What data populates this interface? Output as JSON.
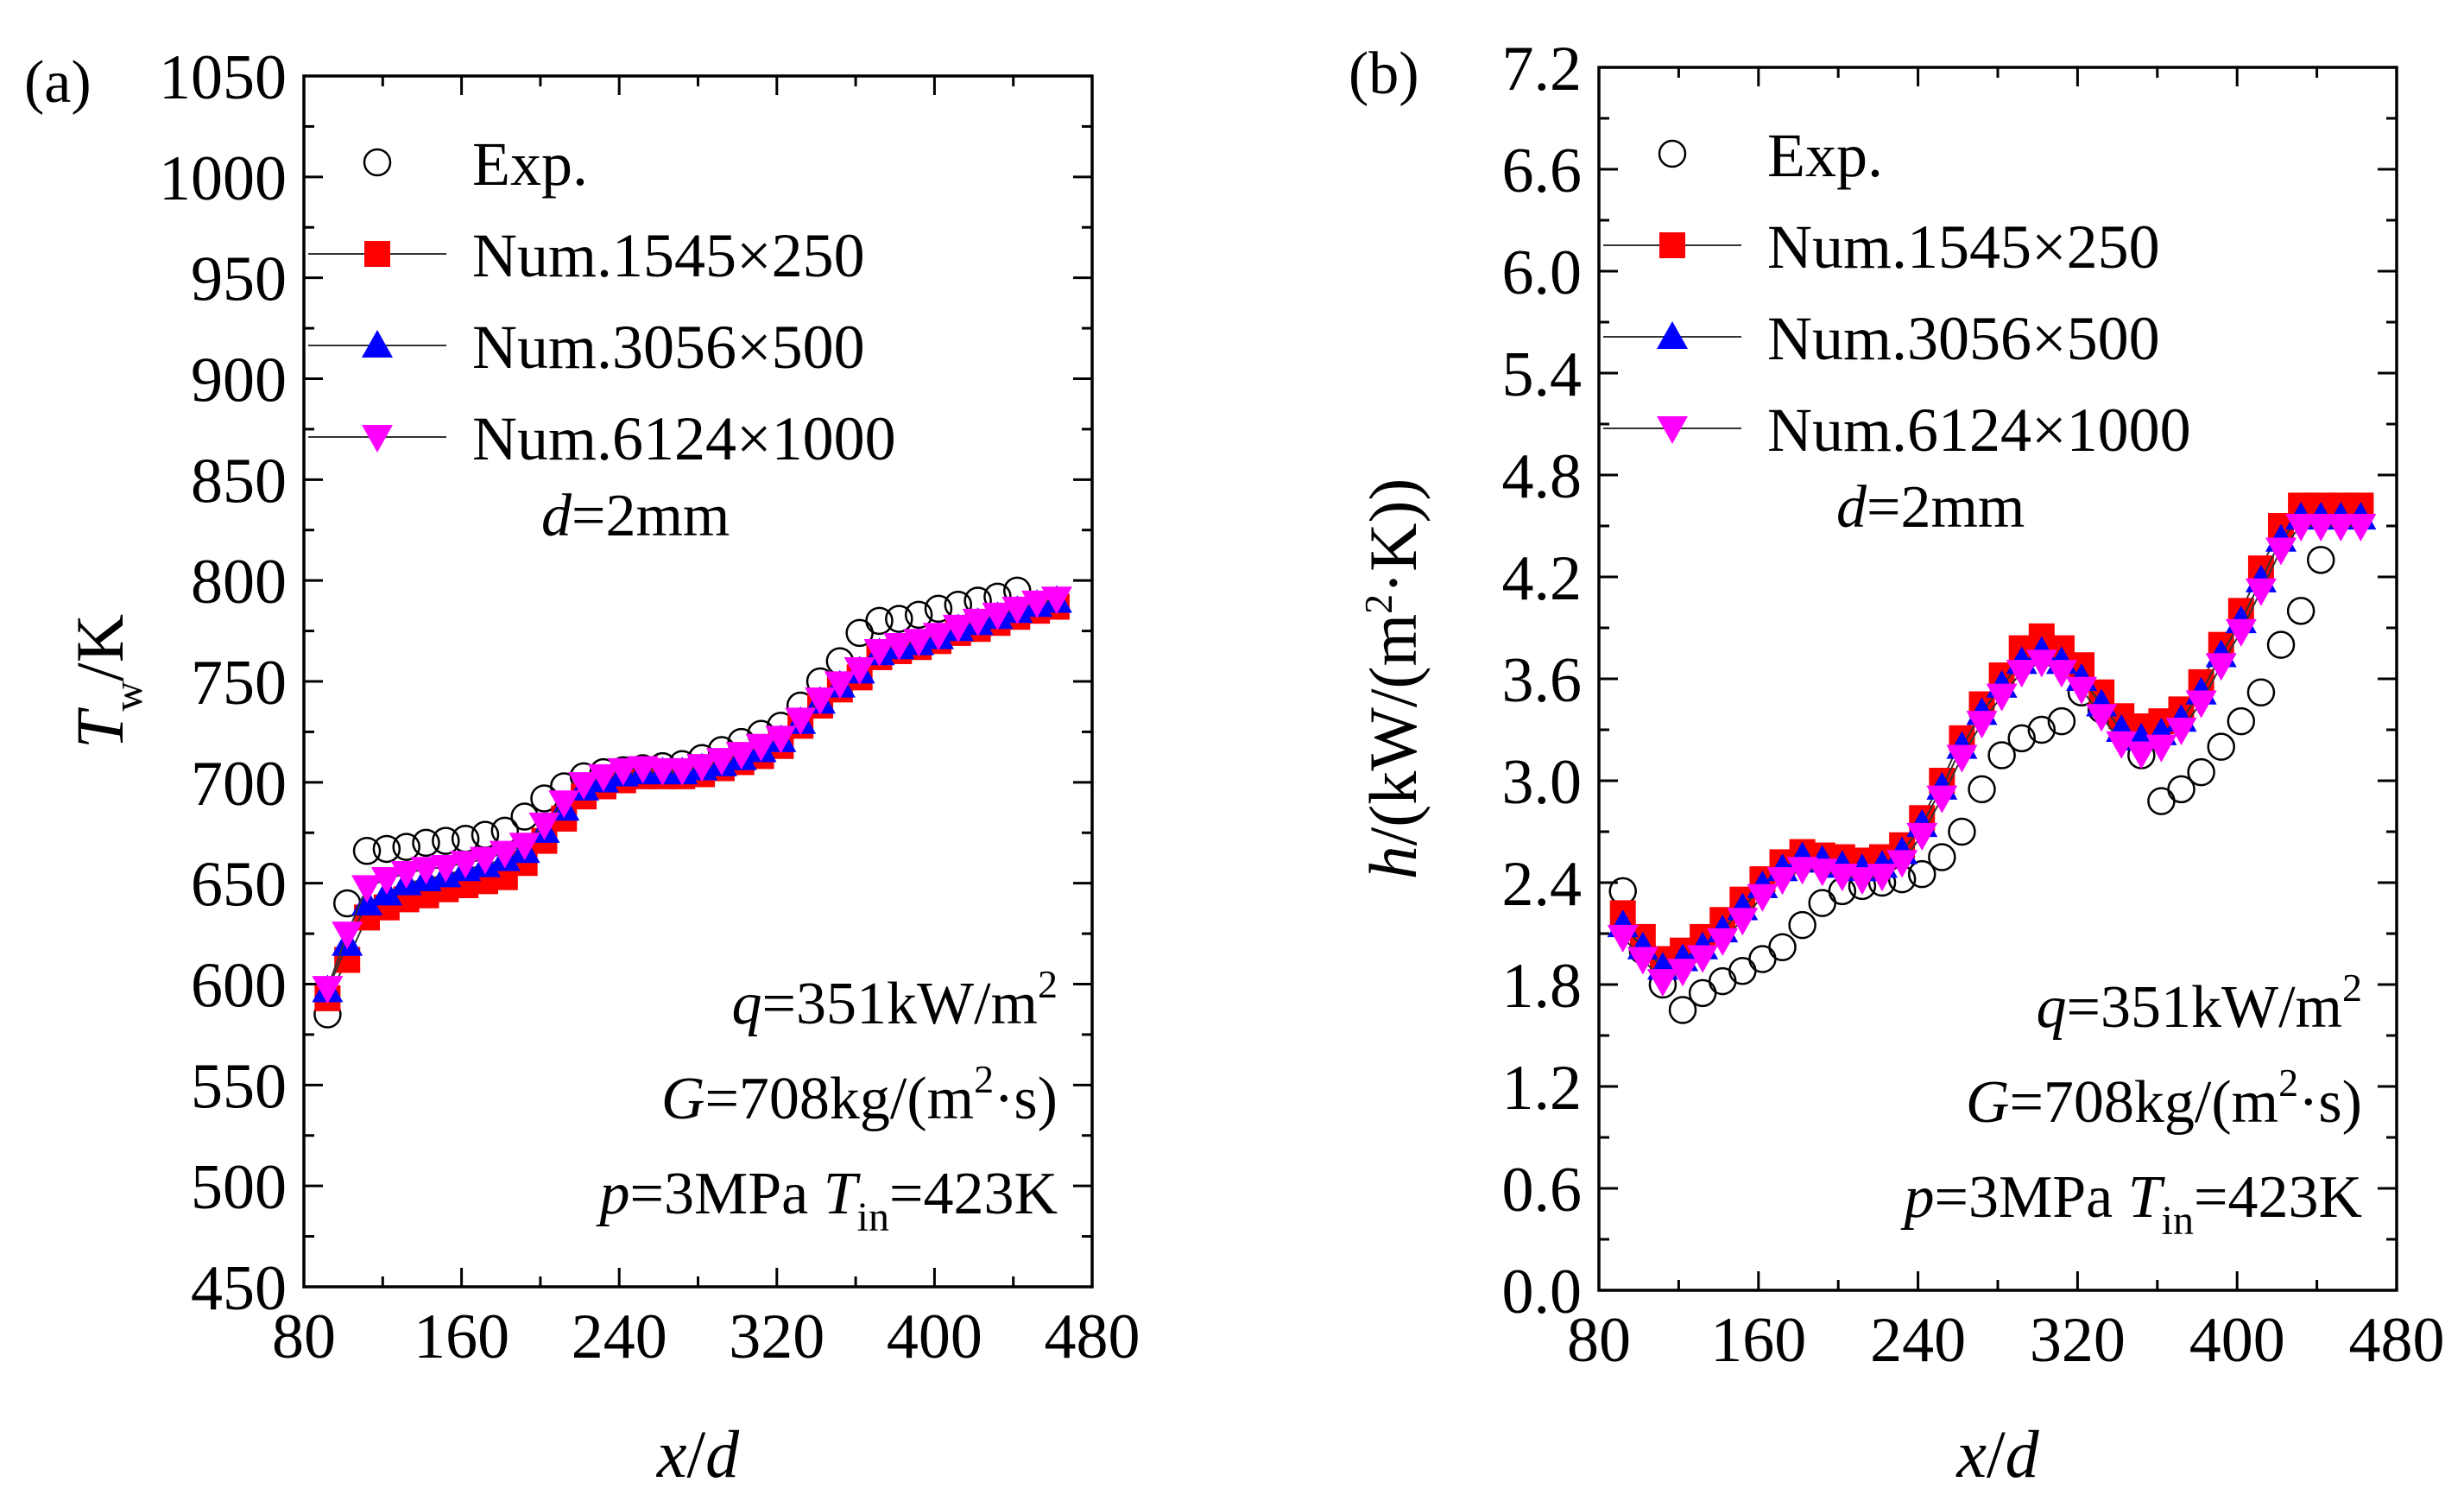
{
  "chart_data": [
    {
      "type": "scatter",
      "panel_label": "(a)",
      "xlabel": {
        "var": "x",
        "sep": "/",
        "den": "d"
      },
      "ylabel": {
        "var": "T",
        "sub": "w",
        "unit": "/K"
      },
      "xlim": [
        80,
        480
      ],
      "ylim": [
        450,
        1050
      ],
      "xticks": [
        80,
        160,
        240,
        320,
        400,
        480
      ],
      "yticks": [
        450,
        500,
        550,
        600,
        650,
        700,
        750,
        800,
        850,
        900,
        950,
        1000,
        1050
      ],
      "tick_decimals": 0,
      "legend": {
        "position": "top-left",
        "entries": [
          "Exp.",
          "Num.1545×250",
          "Num.3056×500",
          "Num.6124×1000"
        ]
      },
      "annotation_top": {
        "var": "d",
        "text": "=2mm"
      },
      "annotation_bottom": [
        {
          "var": "q",
          "text": "=351kW/m",
          "sup": "2",
          "tail": ""
        },
        {
          "var": "G",
          "text": "=708kg/(m",
          "sup": "2",
          "tail": "·s)"
        },
        {
          "var": "p",
          "text": "=3MPa ",
          "var2": "T",
          "sub2": "in",
          "text2": "=423K"
        }
      ],
      "series": [
        {
          "name": "Exp.",
          "marker": "circle-open",
          "color": "#000000",
          "line": false,
          "x": [
            92,
            102,
            112,
            122,
            132,
            142,
            152,
            162,
            172,
            182,
            192,
            202,
            212,
            222,
            232,
            242,
            252,
            262,
            272,
            282,
            292,
            302,
            312,
            322,
            332,
            342,
            352,
            362,
            372,
            382,
            392,
            402,
            412,
            422,
            432,
            442
          ],
          "y": [
            585,
            640,
            666,
            667,
            668,
            670,
            671,
            672,
            674,
            676,
            683,
            692,
            698,
            703,
            705,
            706,
            707,
            708,
            709,
            712,
            716,
            720,
            724,
            728,
            738,
            750,
            760,
            774,
            780,
            781,
            783,
            786,
            788,
            790,
            792,
            795
          ]
        },
        {
          "name": "Num.1545×250",
          "marker": "square",
          "color": "#ff0000",
          "line": true,
          "x": [
            92,
            102,
            112,
            122,
            132,
            142,
            152,
            162,
            172,
            182,
            192,
            202,
            212,
            222,
            232,
            242,
            252,
            262,
            272,
            282,
            292,
            302,
            312,
            322,
            332,
            342,
            352,
            362,
            372,
            382,
            392,
            402,
            412,
            422,
            432,
            442,
            452,
            462
          ],
          "y": [
            593,
            612,
            633,
            638,
            642,
            644,
            647,
            649,
            651,
            653,
            660,
            671,
            682,
            693,
            698,
            701,
            703,
            703,
            703,
            704,
            707,
            710,
            713,
            718,
            728,
            738,
            746,
            752,
            762,
            765,
            767,
            770,
            774,
            776,
            779,
            782,
            785,
            787
          ]
        },
        {
          "name": "Num.3056×500",
          "marker": "triangle-up",
          "color": "#0000ff",
          "line": true,
          "x": [
            92,
            102,
            112,
            122,
            132,
            142,
            152,
            162,
            172,
            182,
            192,
            202,
            212,
            222,
            232,
            242,
            252,
            262,
            272,
            282,
            292,
            302,
            312,
            322,
            332,
            342,
            352,
            362,
            372,
            382,
            392,
            402,
            412,
            422,
            432,
            442,
            452,
            462
          ],
          "y": [
            597,
            620,
            640,
            645,
            650,
            652,
            654,
            657,
            659,
            662,
            666,
            676,
            687,
            697,
            701,
            704,
            705,
            705,
            705,
            707,
            709,
            712,
            716,
            721,
            730,
            740,
            748,
            755,
            764,
            767,
            769,
            772,
            776,
            779,
            782,
            785,
            788,
            790
          ]
        },
        {
          "name": "Num.6124×1000",
          "marker": "triangle-down",
          "color": "#ff00ff",
          "line": true,
          "x": [
            92,
            102,
            112,
            122,
            132,
            142,
            152,
            162,
            172,
            182,
            192,
            202,
            212,
            222,
            232,
            242,
            252,
            262,
            272,
            282,
            292,
            302,
            312,
            322,
            332,
            342,
            352,
            362,
            372,
            382,
            392,
            402,
            412,
            422,
            432,
            442,
            452,
            462
          ],
          "y": [
            598,
            625,
            648,
            652,
            655,
            657,
            658,
            660,
            662,
            665,
            669,
            679,
            690,
            699,
            703,
            706,
            707,
            706,
            706,
            708,
            711,
            714,
            718,
            722,
            731,
            741,
            749,
            756,
            765,
            768,
            770,
            773,
            777,
            780,
            783,
            786,
            789,
            791
          ]
        }
      ]
    },
    {
      "type": "scatter",
      "panel_label": "(b)",
      "xlabel": {
        "var": "x",
        "sep": "/",
        "den": "d"
      },
      "ylabel": {
        "var": "h",
        "unit": "/(kW/(m",
        "sup": "2",
        "unit2": "·K))"
      },
      "xlim": [
        80,
        480
      ],
      "ylim": [
        0,
        7.2
      ],
      "xticks": [
        80,
        160,
        240,
        320,
        400,
        480
      ],
      "yticks": [
        0.0,
        0.6,
        1.2,
        1.8,
        2.4,
        3.0,
        3.6,
        4.2,
        4.8,
        5.4,
        6.0,
        6.6,
        7.2
      ],
      "tick_decimals": 1,
      "legend": {
        "position": "top-left",
        "entries": [
          "Exp.",
          "Num.1545×250",
          "Num.3056×500",
          "Num.6124×1000"
        ]
      },
      "annotation_top": {
        "var": "d",
        "text": "=2mm"
      },
      "annotation_bottom": [
        {
          "var": "q",
          "text": "=351kW/m",
          "sup": "2",
          "tail": ""
        },
        {
          "var": "G",
          "text": "=708kg/(m",
          "sup": "2",
          "tail": "·s)"
        },
        {
          "var": "p",
          "text": "=3MPa ",
          "var2": "T",
          "sub2": "in",
          "text2": "=423K"
        }
      ],
      "series": [
        {
          "name": "Exp.",
          "marker": "circle-open",
          "color": "#000000",
          "line": false,
          "x": [
            92,
            102,
            112,
            122,
            132,
            142,
            152,
            162,
            172,
            182,
            192,
            202,
            212,
            222,
            232,
            242,
            252,
            262,
            272,
            282,
            292,
            302,
            312,
            322,
            332,
            342,
            352,
            362,
            372,
            382,
            392,
            402,
            412,
            422,
            432,
            442
          ],
          "y": [
            2.35,
            2.0,
            1.8,
            1.65,
            1.75,
            1.82,
            1.88,
            1.95,
            2.02,
            2.15,
            2.28,
            2.35,
            2.38,
            2.4,
            2.42,
            2.45,
            2.55,
            2.7,
            2.95,
            3.15,
            3.25,
            3.3,
            3.35,
            3.52,
            3.42,
            3.35,
            3.15,
            2.88,
            2.95,
            3.05,
            3.2,
            3.35,
            3.52,
            3.8,
            4.0,
            4.3
          ]
        },
        {
          "name": "Num.1545×250",
          "marker": "square",
          "color": "#ff0000",
          "line": true,
          "x": [
            92,
            102,
            112,
            122,
            132,
            142,
            152,
            162,
            172,
            182,
            192,
            202,
            212,
            222,
            232,
            242,
            252,
            262,
            272,
            282,
            292,
            302,
            312,
            322,
            332,
            342,
            352,
            362,
            372,
            382,
            392,
            402,
            412,
            422,
            432,
            442,
            452,
            462
          ],
          "y": [
            2.22,
            2.08,
            1.95,
            2.0,
            2.08,
            2.18,
            2.3,
            2.42,
            2.52,
            2.58,
            2.56,
            2.55,
            2.53,
            2.55,
            2.62,
            2.78,
            3.0,
            3.25,
            3.45,
            3.62,
            3.78,
            3.85,
            3.78,
            3.68,
            3.52,
            3.38,
            3.32,
            3.35,
            3.42,
            3.58,
            3.8,
            4.0,
            4.25,
            4.5,
            4.62,
            4.62,
            4.62,
            4.62
          ]
        },
        {
          "name": "Num.3056×500",
          "marker": "triangle-up",
          "color": "#0000ff",
          "line": true,
          "x": [
            92,
            102,
            112,
            122,
            132,
            142,
            152,
            162,
            172,
            182,
            192,
            202,
            212,
            222,
            232,
            242,
            252,
            262,
            272,
            282,
            292,
            302,
            312,
            322,
            332,
            342,
            352,
            362,
            372,
            382,
            392,
            402,
            412,
            422,
            432,
            442,
            452,
            462
          ],
          "y": [
            2.15,
            2.02,
            1.9,
            1.95,
            2.02,
            2.12,
            2.25,
            2.38,
            2.48,
            2.55,
            2.53,
            2.5,
            2.48,
            2.5,
            2.58,
            2.74,
            2.96,
            3.2,
            3.4,
            3.56,
            3.7,
            3.76,
            3.7,
            3.6,
            3.45,
            3.3,
            3.25,
            3.28,
            3.36,
            3.52,
            3.74,
            3.94,
            4.18,
            4.42,
            4.55,
            4.55,
            4.55,
            4.55
          ]
        },
        {
          "name": "Num.6124×1000",
          "marker": "triangle-down",
          "color": "#ff00ff",
          "line": true,
          "x": [
            92,
            102,
            112,
            122,
            132,
            142,
            152,
            162,
            172,
            182,
            192,
            202,
            212,
            222,
            232,
            242,
            252,
            262,
            272,
            282,
            292,
            302,
            312,
            322,
            332,
            342,
            352,
            362,
            372,
            382,
            392,
            402,
            412,
            422,
            432,
            442,
            452,
            462
          ],
          "y": [
            2.08,
            1.95,
            1.82,
            1.88,
            1.96,
            2.06,
            2.18,
            2.32,
            2.42,
            2.48,
            2.47,
            2.44,
            2.42,
            2.44,
            2.52,
            2.68,
            2.9,
            3.14,
            3.34,
            3.5,
            3.64,
            3.7,
            3.64,
            3.54,
            3.38,
            3.22,
            3.16,
            3.2,
            3.3,
            3.46,
            3.68,
            3.88,
            4.12,
            4.36,
            4.5,
            4.5,
            4.5,
            4.5
          ]
        }
      ]
    }
  ]
}
